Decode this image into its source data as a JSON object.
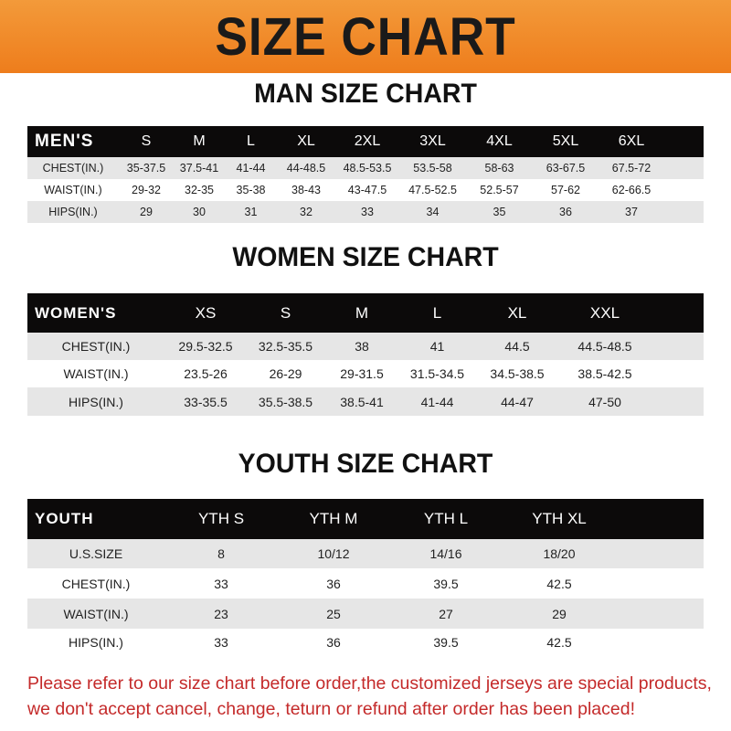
{
  "banner_title": "SIZE CHART",
  "men": {
    "title": "MAN SIZE CHART",
    "header": [
      "MEN'S",
      "S",
      "M",
      "L",
      "XL",
      "2XL",
      "3XL",
      "4XL",
      "5XL",
      "6XL"
    ],
    "rows": [
      [
        "CHEST(IN.)",
        "35-37.5",
        "37.5-41",
        "41-44",
        "44-48.5",
        "48.5-53.5",
        "53.5-58",
        "58-63",
        "63-67.5",
        "67.5-72"
      ],
      [
        "WAIST(IN.)",
        "29-32",
        "32-35",
        "35-38",
        "38-43",
        "43-47.5",
        "47.5-52.5",
        "52.5-57",
        "57-62",
        "62-66.5"
      ],
      [
        "HIPS(IN.)",
        "29",
        "30",
        "31",
        "32",
        "33",
        "34",
        "35",
        "36",
        "37"
      ]
    ]
  },
  "women": {
    "title": "WOMEN SIZE CHART",
    "header": [
      "WOMEN'S",
      "XS",
      "S",
      "M",
      "L",
      "XL",
      "XXL"
    ],
    "rows": [
      [
        "CHEST(IN.)",
        "29.5-32.5",
        "32.5-35.5",
        "38",
        "41",
        "44.5",
        "44.5-48.5"
      ],
      [
        "WAIST(IN.)",
        "23.5-26",
        "26-29",
        "29-31.5",
        "31.5-34.5",
        "34.5-38.5",
        "38.5-42.5"
      ],
      [
        "HIPS(IN.)",
        "33-35.5",
        "35.5-38.5",
        "38.5-41",
        "41-44",
        "44-47",
        "47-50"
      ]
    ]
  },
  "youth": {
    "title": "YOUTH SIZE CHART",
    "header": [
      "YOUTH",
      "YTH S",
      "YTH M",
      "YTH L",
      "YTH XL"
    ],
    "rows": [
      [
        "U.S.SIZE",
        "8",
        "10/12",
        "14/16",
        "18/20"
      ],
      [
        "CHEST(IN.)",
        "33",
        "36",
        "39.5",
        "42.5"
      ],
      [
        "WAIST(IN.)",
        "23",
        "25",
        "27",
        "29"
      ],
      [
        "HIPS(IN.)",
        "33",
        "36",
        "39.5",
        "42.5"
      ]
    ]
  },
  "footer": {
    "line1": "Please refer to our size chart before order,the customized jerseys are special products,",
    "line2": "we don't accept cancel, change, teturn or refund after order has been placed!"
  },
  "colors": {
    "banner": "#ef8a2a",
    "header_row": "#0c0a0a",
    "stripe": "#e6e6e6",
    "notice": "#c42a2a"
  }
}
